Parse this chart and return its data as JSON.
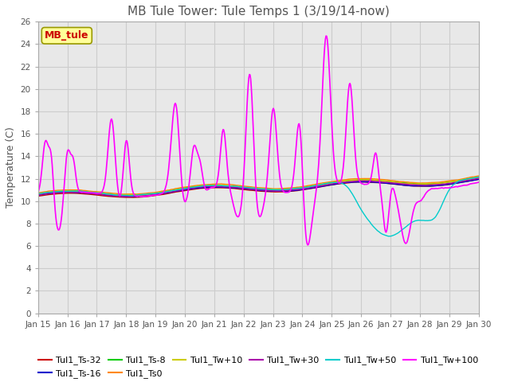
{
  "title": "MB Tule Tower: Tule Temps 1 (3/19/14-now)",
  "ylabel": "Temperature (C)",
  "ylim": [
    0,
    26
  ],
  "yticks": [
    0,
    2,
    4,
    6,
    8,
    10,
    12,
    14,
    16,
    18,
    20,
    22,
    24,
    26
  ],
  "xlim": [
    0,
    15
  ],
  "xtick_labels": [
    "Jan 15",
    "Jan 16",
    "Jan 17",
    "Jan 18",
    "Jan 19",
    "Jan 20",
    "Jan 21",
    "Jan 22",
    "Jan 23",
    "Jan 24",
    "Jan 25",
    "Jan 26",
    "Jan 27",
    "Jan 28",
    "Jan 29",
    "Jan 30"
  ],
  "legend_label": "MB_tule",
  "series_order": [
    "Tul1_Ts-32",
    "Tul1_Ts-16",
    "Tul1_Ts-8",
    "Tul1_Ts0",
    "Tul1_Tw+10",
    "Tul1_Tw+30",
    "Tul1_Tw+50",
    "Tul1_Tw+100"
  ],
  "series": {
    "Tul1_Ts-32": {
      "color": "#cc0000",
      "lw": 1.0
    },
    "Tul1_Ts-16": {
      "color": "#0000cc",
      "lw": 1.0
    },
    "Tul1_Ts-8": {
      "color": "#00cc00",
      "lw": 1.0
    },
    "Tul1_Ts0": {
      "color": "#ff8800",
      "lw": 1.0
    },
    "Tul1_Tw+10": {
      "color": "#cccc00",
      "lw": 1.0
    },
    "Tul1_Tw+30": {
      "color": "#aa00aa",
      "lw": 1.0
    },
    "Tul1_Tw+50": {
      "color": "#00cccc",
      "lw": 1.0
    },
    "Tul1_Tw+100": {
      "color": "#ff00ff",
      "lw": 1.2
    }
  },
  "background_color": "#ffffff",
  "grid_color": "#cccccc",
  "title_color": "#555555",
  "ax_facecolor": "#e8e8e8"
}
